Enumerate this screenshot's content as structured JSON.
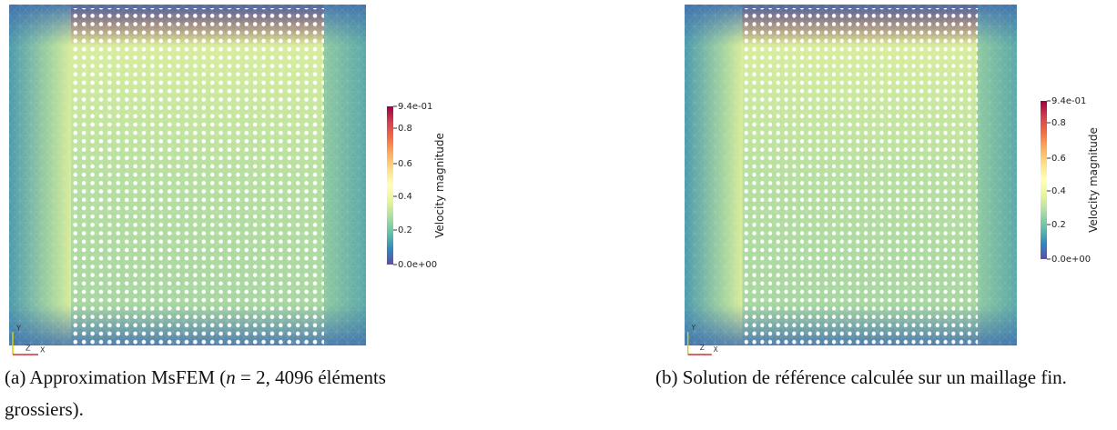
{
  "panels": [
    {
      "colorbar": {
        "title": "Velocity magnitude",
        "ticks": [
          "9.4e-01",
          "0.8",
          "0.6",
          "0.4",
          "0.2",
          "0.0e+00"
        ]
      },
      "axes": {
        "x": "X",
        "y": "Y",
        "z": "Z"
      },
      "caption": {
        "label": "(a)",
        "text": "Approximation MsFEM (",
        "var": "n",
        "rest": " = 2, 4096 éléments grossiers)."
      }
    },
    {
      "colorbar": {
        "title": "Velocity magnitude",
        "ticks": [
          "9.4e-01",
          "0.8",
          "0.6",
          "0.4",
          "0.2",
          "0.0e+00"
        ]
      },
      "axes": {
        "x": "X",
        "y": "Y",
        "z": "Z"
      },
      "caption": {
        "label": "(b)",
        "text": "Solution de référence calculée sur un maillage fin."
      }
    }
  ]
}
